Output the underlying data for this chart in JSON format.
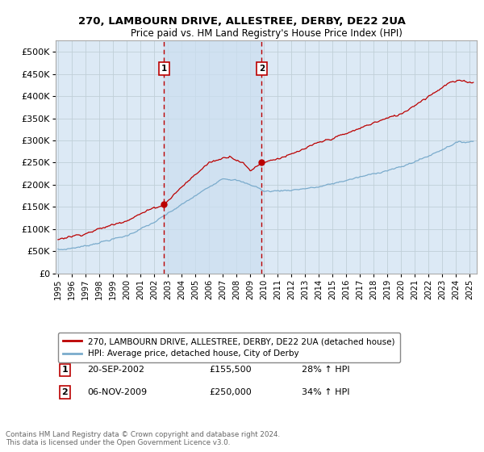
{
  "title1": "270, LAMBOURN DRIVE, ALLESTREE, DERBY, DE22 2UA",
  "title2": "Price paid vs. HM Land Registry's House Price Index (HPI)",
  "ytick_vals": [
    0,
    50000,
    100000,
    150000,
    200000,
    250000,
    300000,
    350000,
    400000,
    450000,
    500000
  ],
  "ylabel_ticks": [
    "£0",
    "£50K",
    "£100K",
    "£150K",
    "£200K",
    "£250K",
    "£300K",
    "£350K",
    "£400K",
    "£450K",
    "£500K"
  ],
  "ylim": [
    0,
    525000
  ],
  "xlim_start": 1994.83,
  "xlim_end": 2025.5,
  "background_color": "#dce9f5",
  "shade_color": "#ccdff0",
  "red_color": "#bb0000",
  "blue_color": "#7aabcc",
  "grid_color": "#c8d8e8",
  "purchase1_x": 2002.72,
  "purchase1_y": 155500,
  "purchase2_x": 2009.84,
  "purchase2_y": 250000,
  "footnote": "Contains HM Land Registry data © Crown copyright and database right 2024.\nThis data is licensed under the Open Government Licence v3.0.",
  "legend_label_red": "270, LAMBOURN DRIVE, ALLESTREE, DERBY, DE22 2UA (detached house)",
  "legend_label_blue": "HPI: Average price, detached house, City of Derby",
  "annotation1_label": "1",
  "annotation1_date": "20-SEP-2002",
  "annotation1_price": "£155,500",
  "annotation1_hpi": "28% ↑ HPI",
  "annotation2_label": "2",
  "annotation2_date": "06-NOV-2009",
  "annotation2_price": "£250,000",
  "annotation2_hpi": "34% ↑ HPI"
}
